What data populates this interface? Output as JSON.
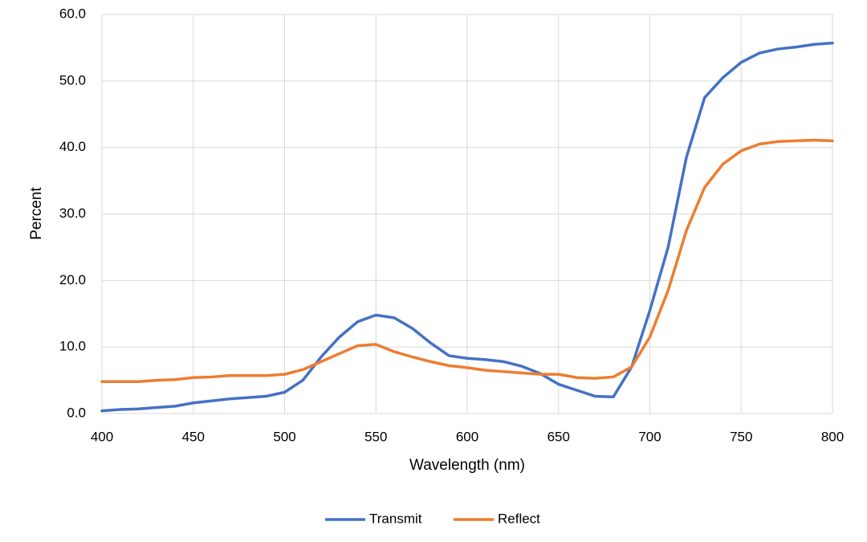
{
  "chart_data": {
    "type": "line",
    "x_label": "Wavelength (nm)",
    "y_label": "Percent",
    "x": [
      400,
      410,
      420,
      430,
      440,
      450,
      460,
      470,
      480,
      490,
      500,
      510,
      520,
      530,
      540,
      550,
      560,
      570,
      580,
      590,
      600,
      610,
      620,
      630,
      640,
      650,
      660,
      670,
      680,
      690,
      700,
      710,
      720,
      730,
      740,
      750,
      760,
      770,
      780,
      790,
      800
    ],
    "series": [
      {
        "name": "Transmit",
        "color": "#4472c4",
        "values": [
          0.4,
          0.6,
          0.7,
          0.9,
          1.1,
          1.6,
          1.9,
          2.2,
          2.4,
          2.6,
          3.2,
          5.0,
          8.5,
          11.5,
          13.8,
          14.8,
          14.4,
          12.8,
          10.6,
          8.7,
          8.3,
          8.1,
          7.8,
          7.1,
          6.0,
          4.4,
          3.5,
          2.6,
          2.5,
          7.0,
          15.5,
          25.0,
          38.5,
          47.5,
          50.5,
          52.8,
          54.2,
          54.8,
          55.1,
          55.5,
          55.7
        ]
      },
      {
        "name": "Reflect",
        "color": "#ed7d31",
        "values": [
          4.8,
          4.8,
          4.8,
          5.0,
          5.1,
          5.4,
          5.5,
          5.7,
          5.7,
          5.7,
          5.9,
          6.6,
          7.8,
          9.0,
          10.2,
          10.4,
          9.3,
          8.5,
          7.8,
          7.2,
          6.9,
          6.5,
          6.3,
          6.1,
          5.9,
          5.9,
          5.4,
          5.3,
          5.5,
          7.0,
          11.5,
          18.5,
          27.5,
          34.0,
          37.5,
          39.5,
          40.5,
          40.9,
          41.0,
          41.1,
          41.0
        ]
      }
    ],
    "xlim": [
      400,
      800
    ],
    "xticks": [
      400,
      450,
      500,
      550,
      600,
      650,
      700,
      750,
      800
    ],
    "ylim": [
      0,
      60
    ],
    "yticks": [
      {
        "value": 0,
        "label": "0.0"
      },
      {
        "value": 10,
        "label": "10.0"
      },
      {
        "value": 20,
        "label": "20.0"
      },
      {
        "value": 30,
        "label": "30.0"
      },
      {
        "value": 40,
        "label": "40.0"
      },
      {
        "value": 50,
        "label": "50.0"
      },
      {
        "value": 60,
        "label": "60.0"
      }
    ],
    "grid": true,
    "legend": "bottom"
  }
}
